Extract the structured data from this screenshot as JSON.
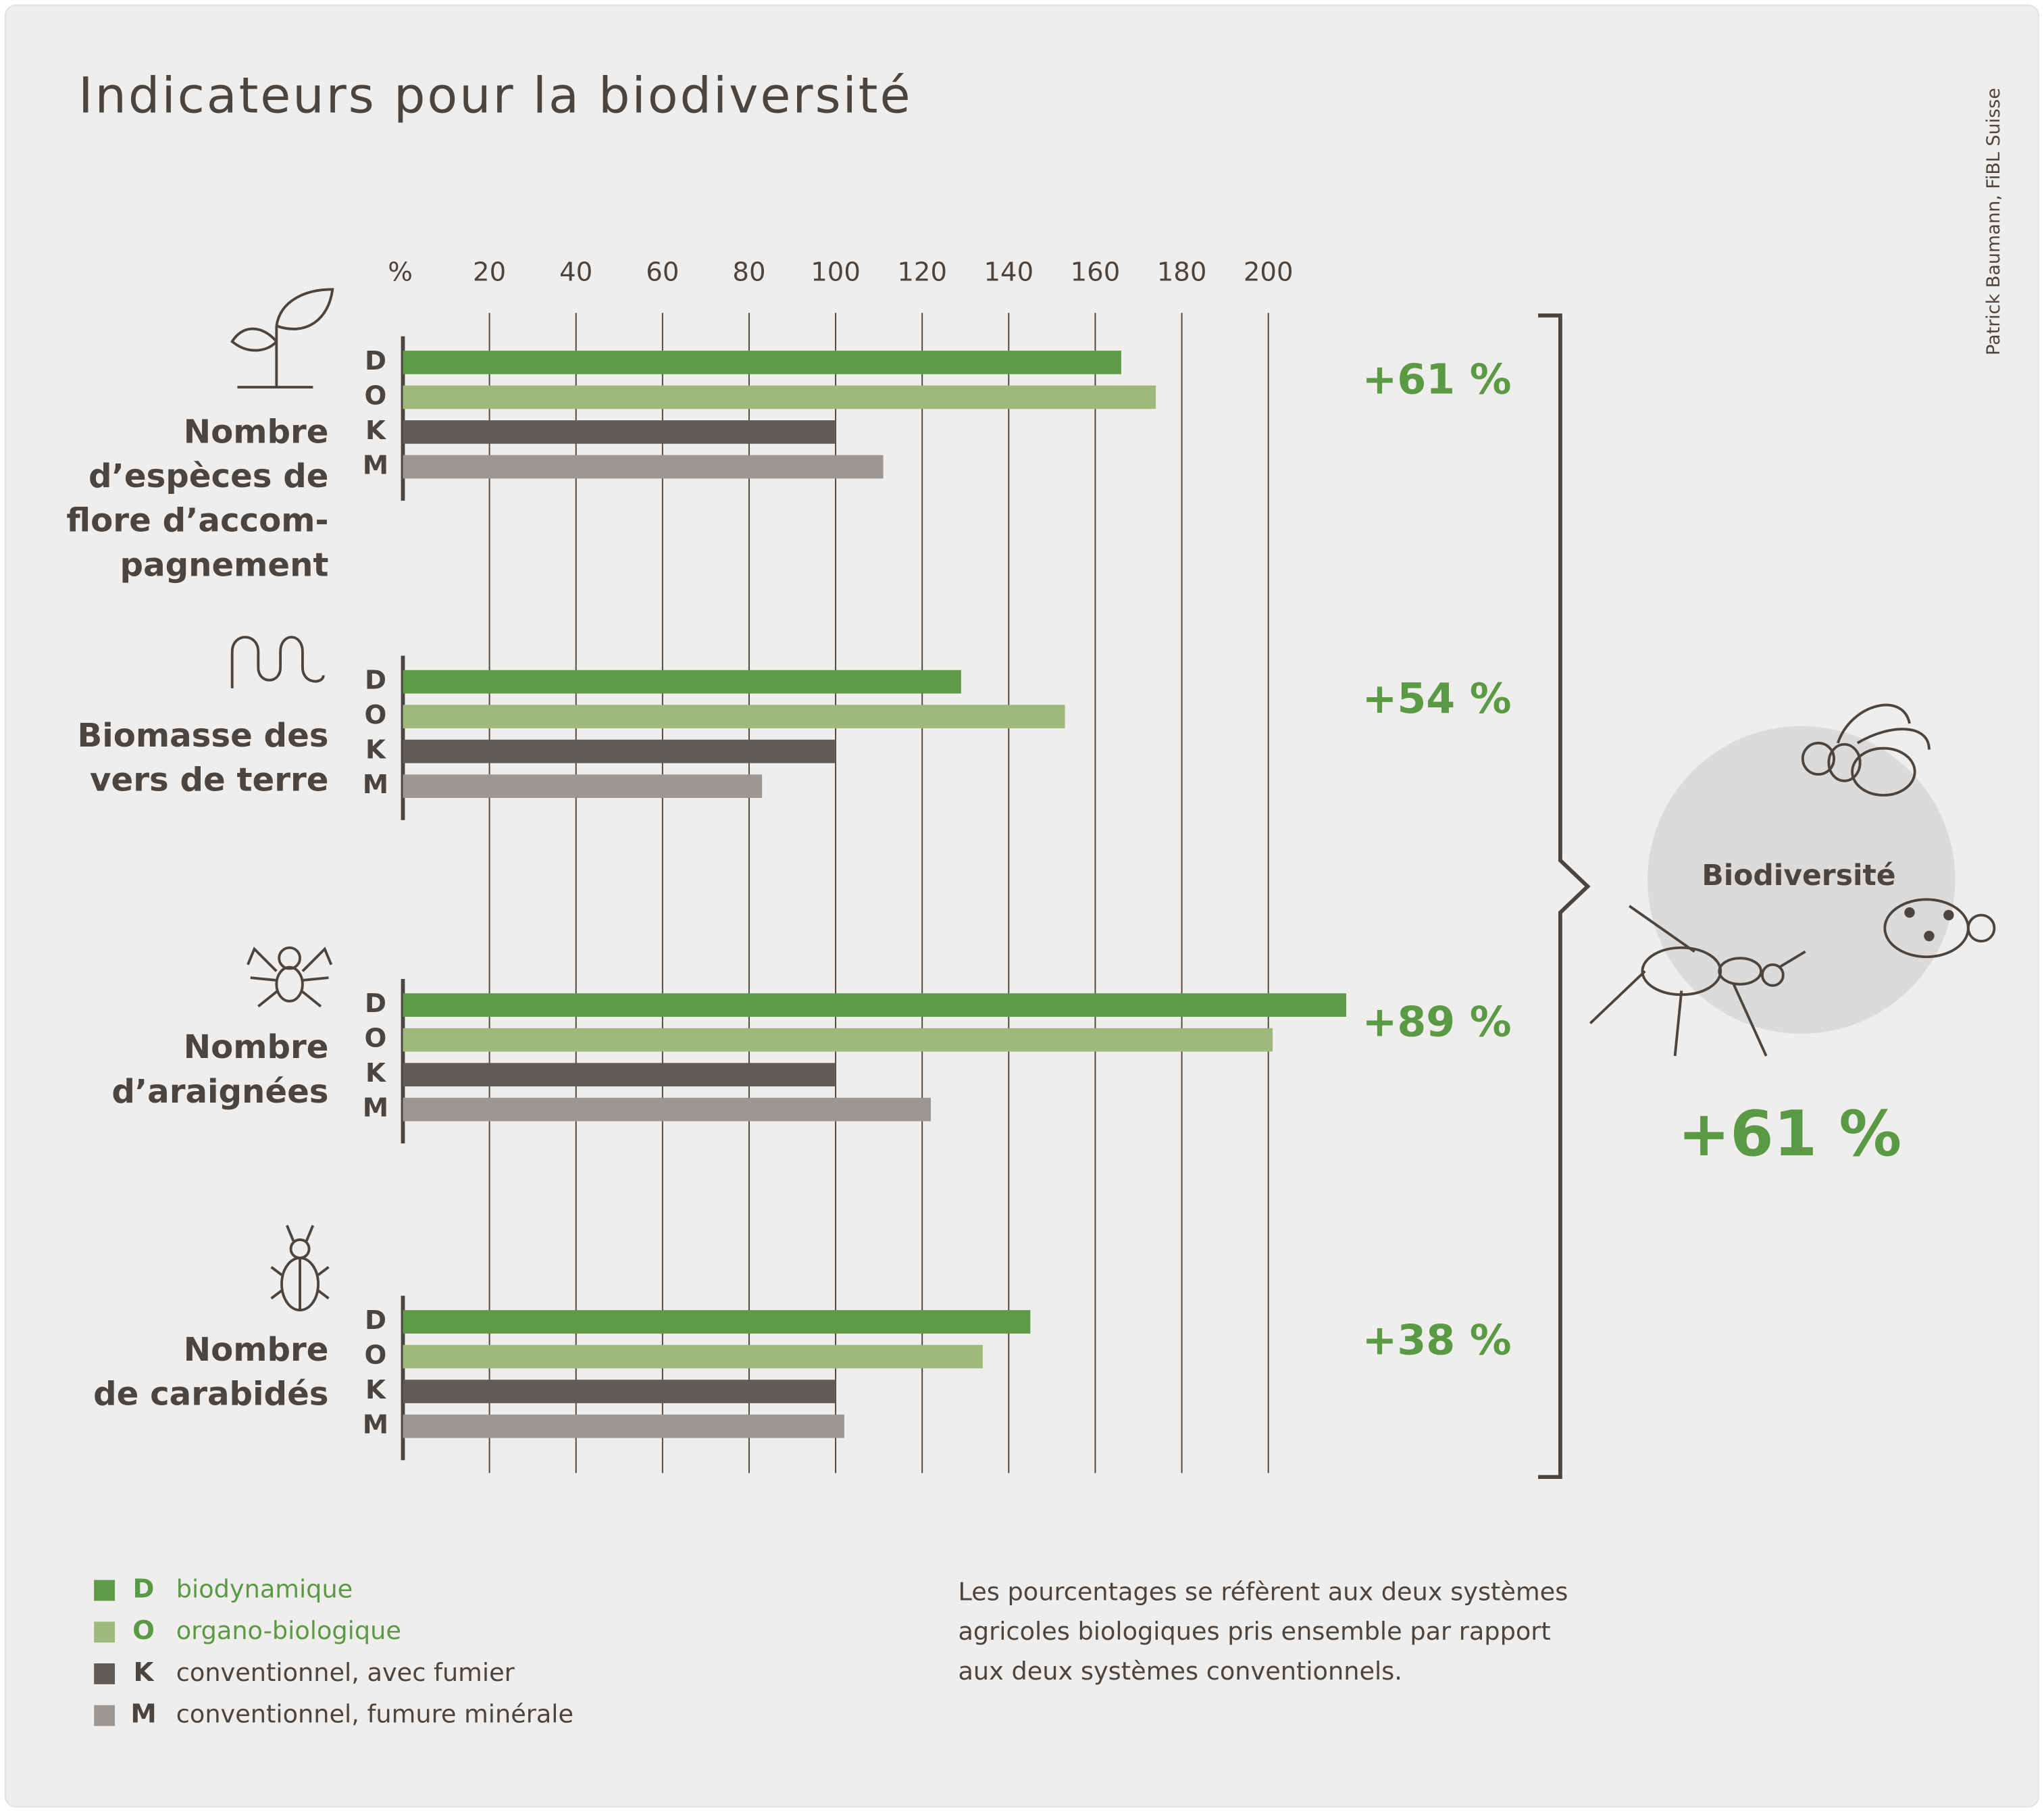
{
  "chart_data": {
    "type": "bar",
    "orientation": "horizontal",
    "title": "Indicateurs pour la biodiversité",
    "credit": "Patrick Baumann, FiBL Suisse",
    "categories": [
      [
        "Nombre",
        "d’espèces de",
        "flore d’accom-",
        "pagnement"
      ],
      [
        "Biomasse des",
        "vers de terre"
      ],
      [
        "Nombre",
        "d’araignées"
      ],
      [
        "Nombre",
        "de carabidés"
      ]
    ],
    "changes": [
      "+61 %",
      "+54 %",
      "+89 %",
      "+38 %"
    ],
    "series": [
      {
        "key": "D",
        "name": "biodynamique",
        "color": "#5e9a48",
        "values": [
          166,
          129,
          218,
          145
        ]
      },
      {
        "key": "O",
        "name": "organo-biologique",
        "color": "#9fb97c",
        "values": [
          174,
          153,
          201,
          134
        ]
      },
      {
        "key": "K",
        "name": "conventionnel, avec fumier",
        "color": "#5f5b58",
        "values": [
          100,
          100,
          100,
          100
        ]
      },
      {
        "key": "M",
        "name": "conventionnel, fumure minérale",
        "color": "#9b9795",
        "values": [
          111,
          83,
          122,
          102
        ]
      }
    ],
    "xlim": [
      0,
      220
    ],
    "xticks": [
      {
        "value": 0,
        "label": "%"
      },
      20,
      40,
      60,
      80,
      100,
      120,
      140,
      160,
      180,
      200
    ],
    "grid": true,
    "summary": {
      "label": "Biodiversité",
      "change": "+61 %"
    },
    "note": [
      "Les pourcentages se réfèrent aux deux systèmes",
      "agricoles biologiques pris ensemble par rapport",
      "aux deux systèmes conventionnels."
    ]
  }
}
